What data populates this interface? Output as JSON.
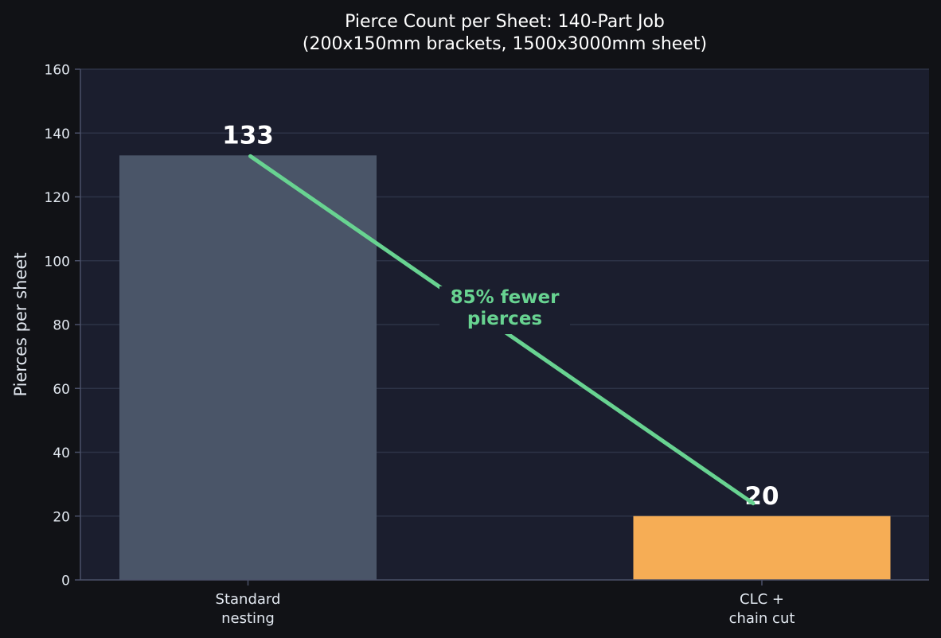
{
  "chart_data": {
    "type": "bar",
    "title": "Pierce Count per Sheet: 140-Part Job",
    "subtitle": "(200x150mm brackets, 1500x3000mm sheet)",
    "xlabel": "",
    "ylabel": "Pierces per sheet",
    "ylim": [
      0,
      160
    ],
    "yticks": [
      0,
      20,
      40,
      60,
      80,
      100,
      120,
      140,
      160
    ],
    "categories": [
      [
        "Standard",
        "nesting"
      ],
      [
        "CLC +",
        "chain cut"
      ]
    ],
    "values": [
      133,
      20
    ],
    "data_labels": [
      "133",
      "20"
    ],
    "bar_colors": [
      "#4a5568",
      "#f6ad55"
    ],
    "grid": true,
    "annotation": {
      "text_lines": [
        "85% fewer",
        "pierces"
      ],
      "color": "#68d391",
      "from_value": 133,
      "to_value": 20
    }
  },
  "colors": {
    "page_background": "#111216",
    "plot_background": "#1b1e2e",
    "grid": "#2d3347",
    "axis": "#4a5068",
    "text": "#e2e8f0",
    "label_text": "#ffffff"
  }
}
